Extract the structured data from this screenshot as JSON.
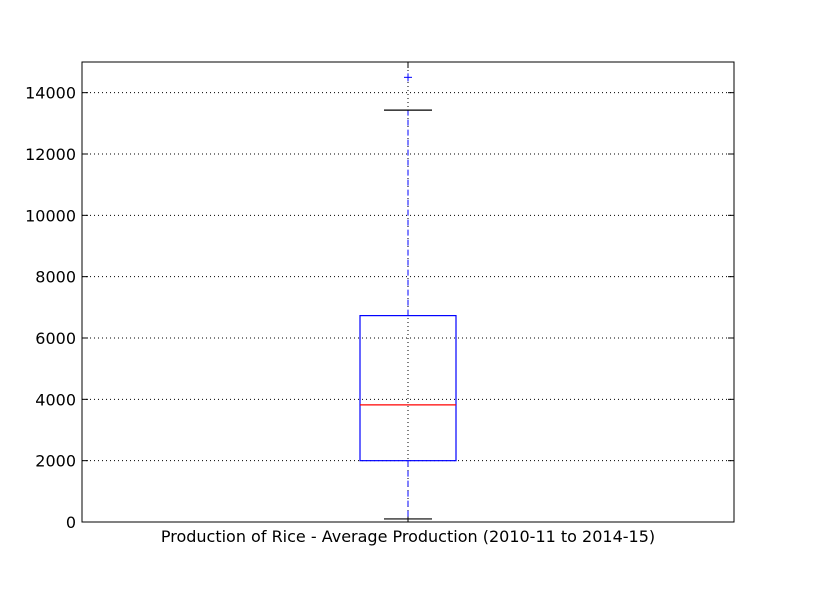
{
  "chart_data": {
    "type": "boxplot",
    "title": "",
    "ylabel": "",
    "ylim": [
      0,
      15000
    ],
    "grid": true,
    "categories": [
      "Production of Rice - Average Production (2010-11 to 2014-15)"
    ],
    "yticks": [
      {
        "value": 0,
        "label": "0"
      },
      {
        "value": 2000,
        "label": "2000"
      },
      {
        "value": 4000,
        "label": "4000"
      },
      {
        "value": 6000,
        "label": "6000"
      },
      {
        "value": 8000,
        "label": "8000"
      },
      {
        "value": 10000,
        "label": "10000"
      },
      {
        "value": 12000,
        "label": "12000"
      },
      {
        "value": 14000,
        "label": "14000"
      }
    ],
    "boxes": [
      {
        "whisker_low": 100,
        "q1": 2000,
        "median": 3820,
        "q3": 6730,
        "whisker_high": 13430,
        "outliers": [
          14500
        ]
      }
    ],
    "colors": {
      "box": "#0000ff",
      "median": "#ff0000",
      "whisker": "#0000ff",
      "cap": "#000000",
      "outlier": "#0000ff",
      "grid": "#000000"
    }
  }
}
